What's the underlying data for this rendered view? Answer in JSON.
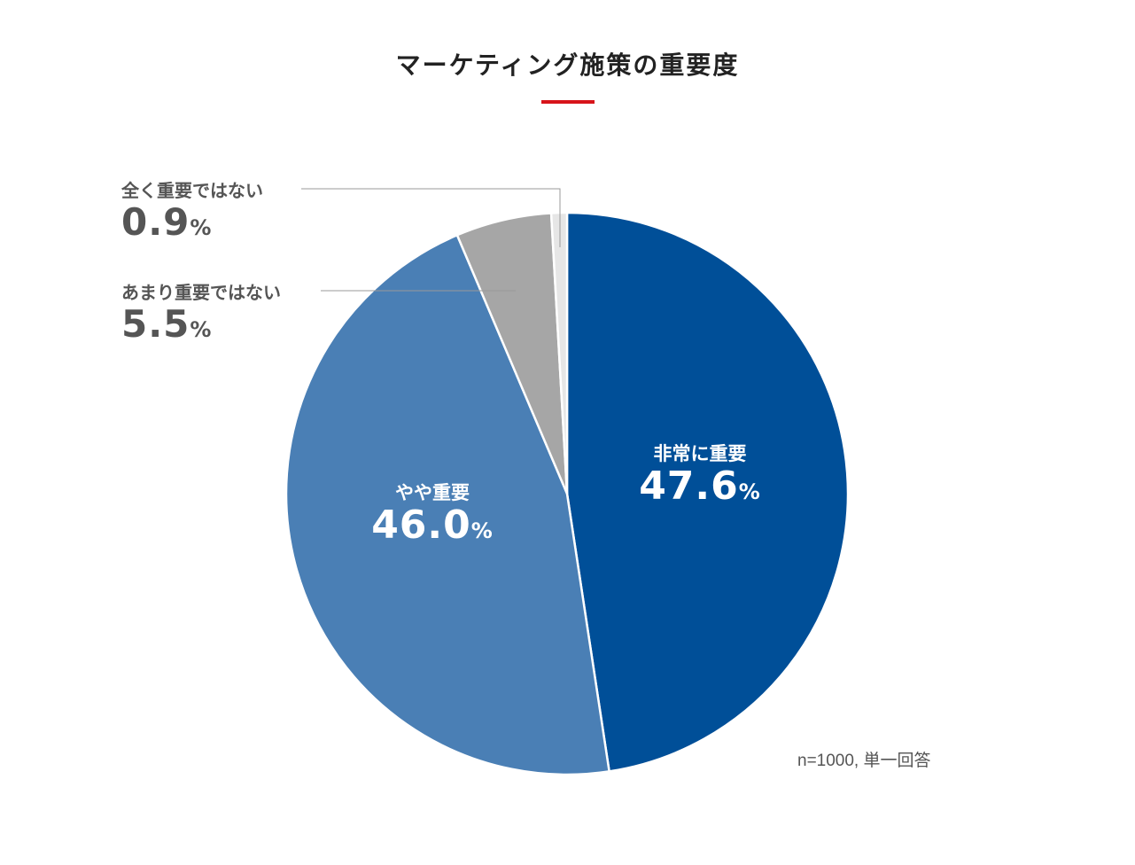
{
  "title": "マーケティング施策の重要度",
  "accent_color": "#d7141a",
  "note": "n=1000, 単一回答",
  "percent_symbol": "%",
  "chart_data": {
    "type": "pie",
    "start_angle": "12 o'clock, clockwise",
    "slices": [
      {
        "label": "非常に重要",
        "display": "47.6",
        "value": 47.6,
        "color": "#004f98",
        "label_color": "#ffffff"
      },
      {
        "label": "やや重要",
        "display": "46.0",
        "value": 46.0,
        "color": "#4a7fb5",
        "label_color": "#ffffff"
      },
      {
        "label": "あまり重要ではない",
        "display": "5.5",
        "value": 5.5,
        "color": "#a6a6a6",
        "label_color": "#555555"
      },
      {
        "label": "全く重要ではない",
        "display": "0.9",
        "value": 0.9,
        "color": "#e6e6e6",
        "label_color": "#555555"
      }
    ]
  }
}
